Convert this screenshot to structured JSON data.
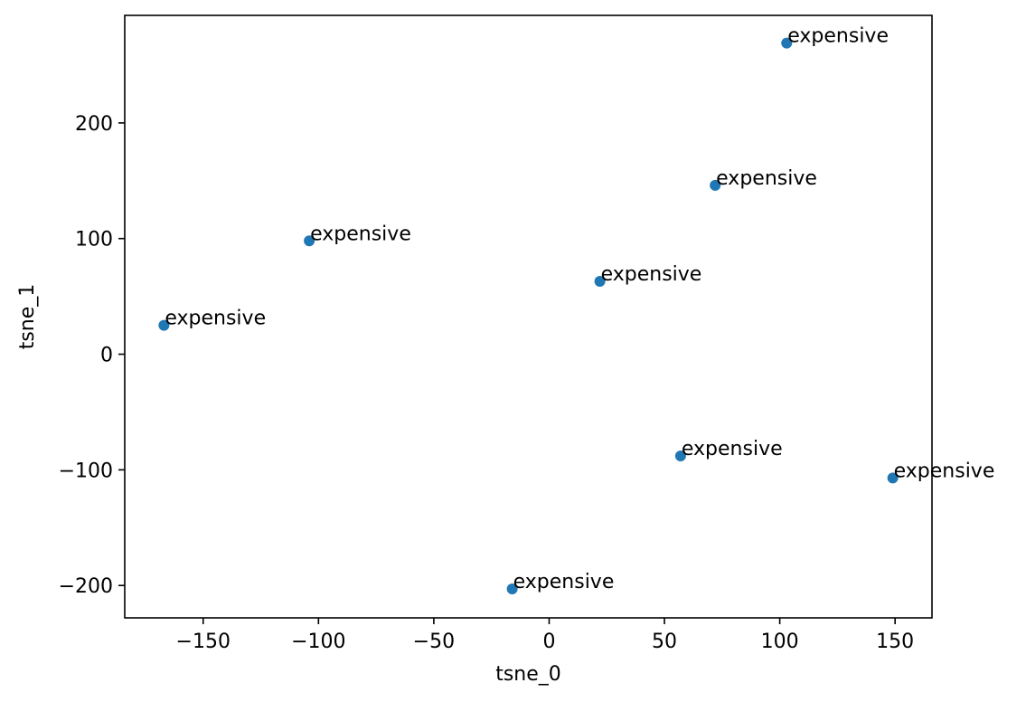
{
  "chart_data": {
    "type": "scatter",
    "title": "",
    "xlabel": "tsne_0",
    "ylabel": "tsne_1",
    "xlim": [
      -184,
      166
    ],
    "ylim": [
      -228,
      293
    ],
    "xticks": [
      -150,
      -100,
      -50,
      0,
      50,
      100,
      150
    ],
    "yticks": [
      -200,
      -100,
      0,
      100,
      200
    ],
    "xtick_labels": [
      "−150",
      "−100",
      "−50",
      "0",
      "50",
      "100",
      "150"
    ],
    "ytick_labels": [
      "−200",
      "−100",
      "0",
      "100",
      "200"
    ],
    "grid": false,
    "legend": false,
    "color": "#1f77b4",
    "points": [
      {
        "x": 103,
        "y": 269,
        "label": "expensive"
      },
      {
        "x": 72,
        "y": 146,
        "label": "expensive"
      },
      {
        "x": -104,
        "y": 98,
        "label": "expensive"
      },
      {
        "x": 22,
        "y": 63,
        "label": "expensive"
      },
      {
        "x": -167,
        "y": 25,
        "label": "expensive"
      },
      {
        "x": 57,
        "y": -88,
        "label": "expensive"
      },
      {
        "x": 149,
        "y": -107,
        "label": "expensive"
      },
      {
        "x": -16,
        "y": -203,
        "label": "expensive"
      }
    ]
  }
}
